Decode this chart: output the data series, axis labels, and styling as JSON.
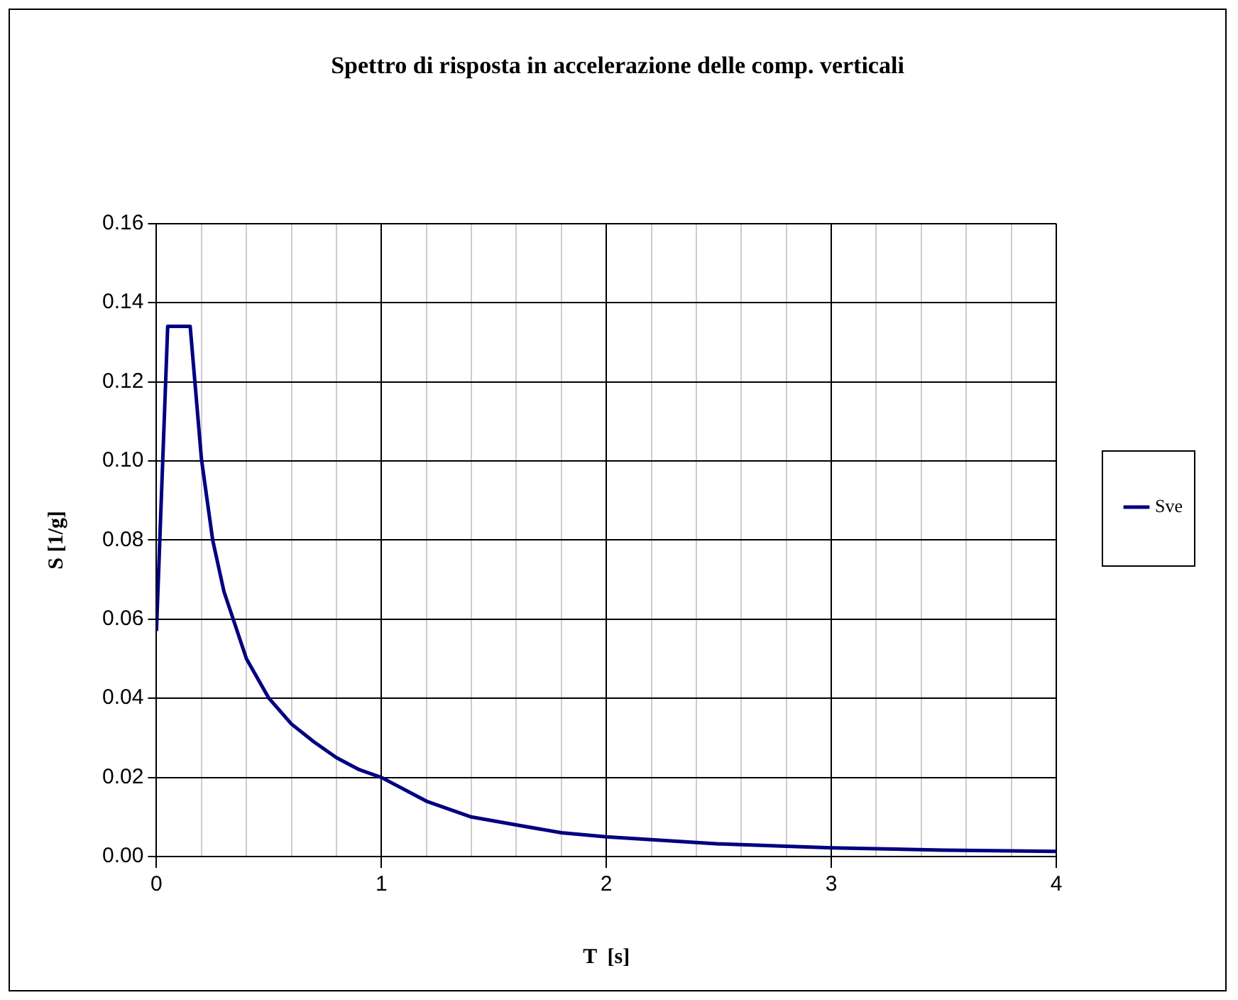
{
  "chart_data": {
    "type": "line",
    "title": "Spettro di risposta in accelerazione delle comp. verticali",
    "xlabel": "T  [s]",
    "ylabel": "S [1/g]",
    "x": [
      0,
      0.05,
      0.15,
      0.2,
      0.25,
      0.3,
      0.4,
      0.5,
      0.6,
      0.7,
      0.8,
      0.9,
      1.0,
      1.2,
      1.4,
      1.6,
      1.8,
      2.0,
      2.5,
      3.0,
      3.5,
      4.0
    ],
    "series": [
      {
        "name": "Sve",
        "color": "#000080",
        "values": [
          0.057,
          0.134,
          0.134,
          0.1005,
          0.08,
          0.067,
          0.05,
          0.04,
          0.0335,
          0.029,
          0.025,
          0.022,
          0.02,
          0.014,
          0.01,
          0.008,
          0.006,
          0.005,
          0.0032,
          0.0022,
          0.0016,
          0.0013
        ]
      }
    ],
    "xlim": [
      0,
      4
    ],
    "xticks": [
      0,
      {
        "value": 0.2,
        "label": null
      },
      {
        "value": 0.4,
        "label": null
      },
      {
        "value": 0.6,
        "label": null
      },
      {
        "value": 0.8,
        "label": null
      },
      1,
      {
        "value": 1.2,
        "label": null
      },
      {
        "value": 1.4,
        "label": null
      },
      {
        "value": 1.6,
        "label": null
      },
      {
        "value": 1.8,
        "label": null
      },
      2,
      {
        "value": 2.2,
        "label": null
      },
      {
        "value": 2.4,
        "label": null
      },
      {
        "value": 2.6,
        "label": null
      },
      {
        "value": 2.8,
        "label": null
      },
      3,
      {
        "value": 3.2,
        "label": null
      },
      {
        "value": 3.4,
        "label": null
      },
      {
        "value": 3.6,
        "label": null
      },
      {
        "value": 3.8,
        "label": null
      },
      4
    ],
    "ylim": [
      0,
      0.16
    ],
    "yticks": [
      {
        "value": 0,
        "label": "0.00"
      },
      {
        "value": 0.02,
        "label": "0.02"
      },
      {
        "value": 0.04,
        "label": "0.04"
      },
      {
        "value": 0.06,
        "label": "0.06"
      },
      {
        "value": 0.08,
        "label": "0.08"
      },
      {
        "value": 0.1,
        "label": "0.10"
      },
      {
        "value": 0.12,
        "label": "0.12"
      },
      {
        "value": 0.14,
        "label": "0.14"
      },
      {
        "value": 0.16,
        "label": "0.16"
      }
    ],
    "grid": true,
    "legend": "right",
    "marker": "none",
    "line_style": "solid"
  }
}
